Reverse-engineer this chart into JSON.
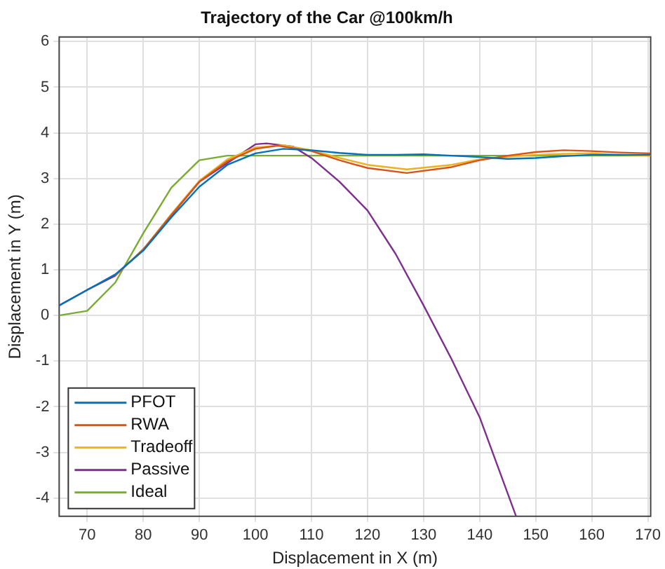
{
  "chart_data": {
    "type": "line",
    "title": "Trajectory of the Car @100km/h",
    "xlabel": "Displacement in X (m)",
    "ylabel": "Displacement in Y (m)",
    "xlim": [
      65,
      170.5
    ],
    "xticks": [
      70,
      80,
      90,
      100,
      110,
      120,
      130,
      140,
      150,
      160,
      170
    ],
    "ylim": [
      -4.4,
      6.1
    ],
    "yticks": [
      -4,
      -3,
      -2,
      -1,
      0,
      1,
      2,
      3,
      4,
      5,
      6
    ],
    "grid": true,
    "legend": "bottom left",
    "marker": "none",
    "line_style": "solid",
    "series": [
      {
        "name": "PFOT",
        "color": "#0072bd",
        "x": [
          65,
          70,
          75,
          80,
          85,
          90,
          95,
          100,
          105,
          110,
          115,
          120,
          125,
          130,
          135,
          140,
          145,
          150,
          155,
          160,
          165,
          170.5
        ],
        "values": [
          0.22,
          0.56,
          0.9,
          1.42,
          2.15,
          2.82,
          3.3,
          3.55,
          3.65,
          3.62,
          3.56,
          3.52,
          3.52,
          3.53,
          3.5,
          3.47,
          3.43,
          3.45,
          3.49,
          3.52,
          3.52,
          3.52
        ]
      },
      {
        "name": "RWA",
        "color": "#d95319",
        "x": [
          75,
          80,
          85,
          90,
          95,
          100,
          104,
          110,
          115,
          120,
          127,
          135,
          140,
          145,
          150,
          155,
          160,
          165,
          170.5
        ],
        "values": [
          0.88,
          1.44,
          2.2,
          2.93,
          3.38,
          3.65,
          3.72,
          3.6,
          3.4,
          3.23,
          3.12,
          3.25,
          3.4,
          3.5,
          3.58,
          3.62,
          3.6,
          3.57,
          3.55
        ]
      },
      {
        "name": "Tradeoff",
        "color": "#edb120",
        "x": [
          75,
          80,
          85,
          90,
          95,
          100,
          105,
          110,
          115,
          120,
          127,
          135,
          140,
          145,
          150,
          155,
          160,
          165,
          170.5
        ],
        "values": [
          0.88,
          1.44,
          2.22,
          2.95,
          3.42,
          3.68,
          3.73,
          3.62,
          3.45,
          3.3,
          3.2,
          3.3,
          3.42,
          3.48,
          3.52,
          3.54,
          3.55,
          3.52,
          3.5
        ]
      },
      {
        "name": "Passive",
        "color": "#7e2f8e",
        "x": [
          65,
          70,
          75,
          80,
          90,
          100,
          102,
          106.7,
          110,
          115,
          120,
          125,
          130,
          135,
          140,
          146.5
        ],
        "values": [
          0.22,
          0.56,
          0.87,
          1.45,
          2.93,
          3.75,
          3.77,
          3.7,
          3.45,
          2.93,
          2.3,
          1.35,
          0.22,
          -0.96,
          -2.23,
          -4.4
        ]
      },
      {
        "name": "Ideal",
        "color": "#77ac30",
        "x": [
          65,
          70,
          75,
          80,
          85,
          90,
          95,
          170.5
        ],
        "values": [
          0,
          0.1,
          0.72,
          1.8,
          2.8,
          3.4,
          3.5,
          3.5
        ]
      }
    ]
  }
}
